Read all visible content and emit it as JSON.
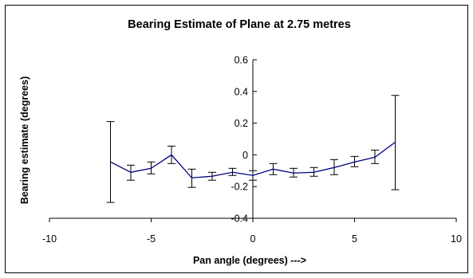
{
  "chart_data": {
    "type": "line",
    "title": "Bearing Estimate of Plane at 2.75 metres",
    "xlabel": "Pan angle (degrees) --->",
    "ylabel": "Bearing estimate (degrees)",
    "xlim": [
      -10,
      10
    ],
    "ylim": [
      -0.4,
      0.6
    ],
    "x_ticks": [
      "-10",
      "-5",
      "0",
      "5",
      "10"
    ],
    "y_ticks": [
      "-0.4",
      "-0.2",
      "0",
      "0.2",
      "0.4",
      "0.6"
    ],
    "grid": false,
    "legend": "none",
    "series": [
      {
        "color": "#000080",
        "points": [
          {
            "x": -7,
            "y": -0.045,
            "err_low": -0.3,
            "err_high": 0.21
          },
          {
            "x": -6,
            "y": -0.11,
            "err_low": -0.16,
            "err_high": -0.065
          },
          {
            "x": -5,
            "y": -0.085,
            "err_low": -0.12,
            "err_high": -0.045
          },
          {
            "x": -4,
            "y": 0.0,
            "err_low": -0.055,
            "err_high": 0.055
          },
          {
            "x": -3,
            "y": -0.145,
            "err_low": -0.205,
            "err_high": -0.09
          },
          {
            "x": -2,
            "y": -0.135,
            "err_low": -0.16,
            "err_high": -0.11
          },
          {
            "x": -1,
            "y": -0.11,
            "err_low": -0.13,
            "err_high": -0.085
          },
          {
            "x": 0,
            "y": -0.13,
            "err_low": -0.16,
            "err_high": -0.1
          },
          {
            "x": 1,
            "y": -0.09,
            "err_low": -0.125,
            "err_high": -0.055
          },
          {
            "x": 2,
            "y": -0.115,
            "err_low": -0.14,
            "err_high": -0.085
          },
          {
            "x": 3,
            "y": -0.11,
            "err_low": -0.135,
            "err_high": -0.08
          },
          {
            "x": 4,
            "y": -0.08,
            "err_low": -0.125,
            "err_high": -0.03
          },
          {
            "x": 5,
            "y": -0.045,
            "err_low": -0.075,
            "err_high": -0.01
          },
          {
            "x": 6,
            "y": -0.015,
            "err_low": -0.055,
            "err_high": 0.03
          },
          {
            "x": 7,
            "y": 0.08,
            "err_low": -0.22,
            "err_high": 0.375
          }
        ]
      }
    ]
  }
}
